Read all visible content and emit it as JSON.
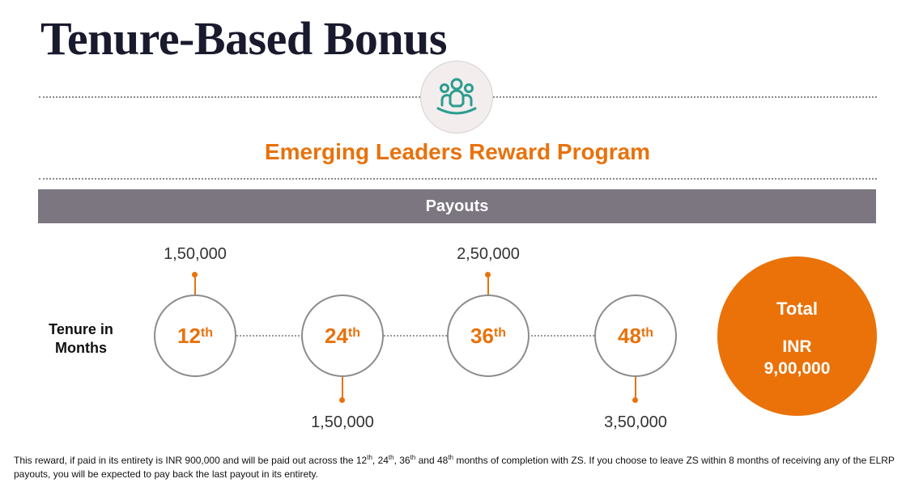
{
  "title": "Tenure-Based Bonus",
  "program_title": "Emerging Leaders Reward Program",
  "payouts_header": "Payouts",
  "tenure_label": "Tenure in Months",
  "milestones": [
    {
      "num": "12",
      "suffix": "th",
      "payout": "1,50,000"
    },
    {
      "num": "24",
      "suffix": "th",
      "payout": "1,50,000"
    },
    {
      "num": "36",
      "suffix": "th",
      "payout": "2,50,000"
    },
    {
      "num": "48",
      "suffix": "th",
      "payout": "3,50,000"
    }
  ],
  "total": {
    "label": "Total",
    "currency": "INR",
    "amount": "9,00,000"
  },
  "footnote": {
    "a": "This reward, if paid in its entirety is INR 900,000 and will be paid out across the 12",
    "b": ", 24",
    "c": ", 36",
    "d": " and 48",
    "e": " months of completion with ZS.  If you choose to leave ZS within 8 months of receiving any of the ELRP payouts, you will be expected to pay back the last payout in its entirety.",
    "sup": "th"
  },
  "colors": {
    "accent": "#e8720c",
    "bar": "#7b7680",
    "icon": "#2a9d8f"
  },
  "icon_name": "team-group-icon"
}
